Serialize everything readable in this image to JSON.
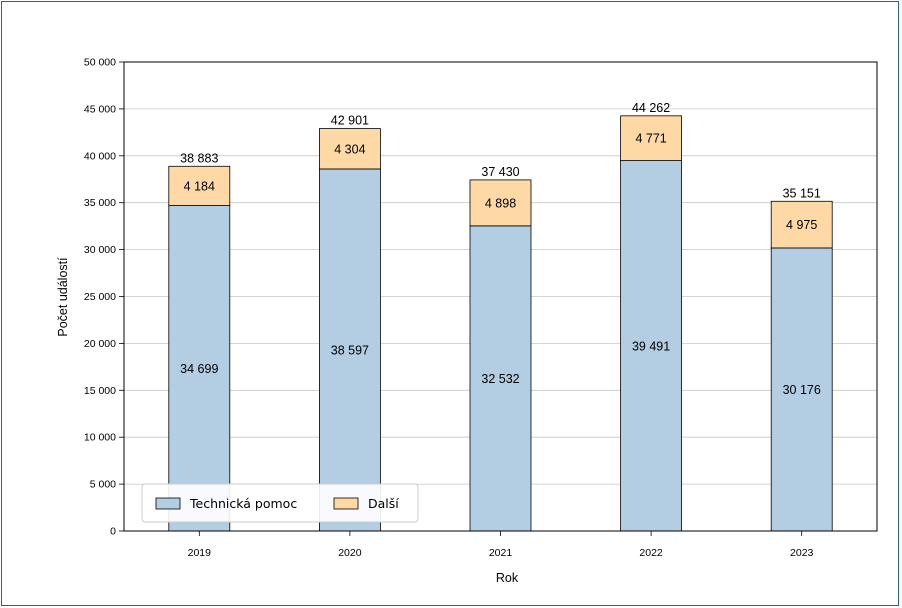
{
  "chart_data": {
    "type": "bar",
    "stacked": true,
    "xlabel": "Rok",
    "ylabel": "Počet událostí",
    "ylim": [
      0,
      50000
    ],
    "yticks": [
      0,
      5000,
      10000,
      15000,
      20000,
      25000,
      30000,
      35000,
      40000,
      45000,
      50000
    ],
    "ytick_labels": [
      "0",
      "5 000",
      "10 000",
      "15 000",
      "20 000",
      "25 000",
      "30 000",
      "35 000",
      "40 000",
      "45 000",
      "50 000"
    ],
    "categories": [
      "2019",
      "2020",
      "2021",
      "2022",
      "2023"
    ],
    "series": [
      {
        "name": "Technická pomoc",
        "color": "#b3cde3",
        "values": [
          34699,
          38597,
          32532,
          39491,
          30176
        ],
        "labels": [
          "34 699",
          "38 597",
          "32 532",
          "39 491",
          "30 176"
        ]
      },
      {
        "name": "Další",
        "color": "#fed9a6",
        "values": [
          4184,
          4304,
          4898,
          4771,
          4975
        ],
        "labels": [
          "4 184",
          "4 304",
          "4 898",
          "4 771",
          "4 975"
        ]
      }
    ],
    "totals": [
      38883,
      42901,
      37430,
      44262,
      35151
    ],
    "total_labels": [
      "38 883",
      "42 901",
      "37 430",
      "44 262",
      "35 151"
    ],
    "grid": "horizontal",
    "legend_position": "bottom-left"
  }
}
